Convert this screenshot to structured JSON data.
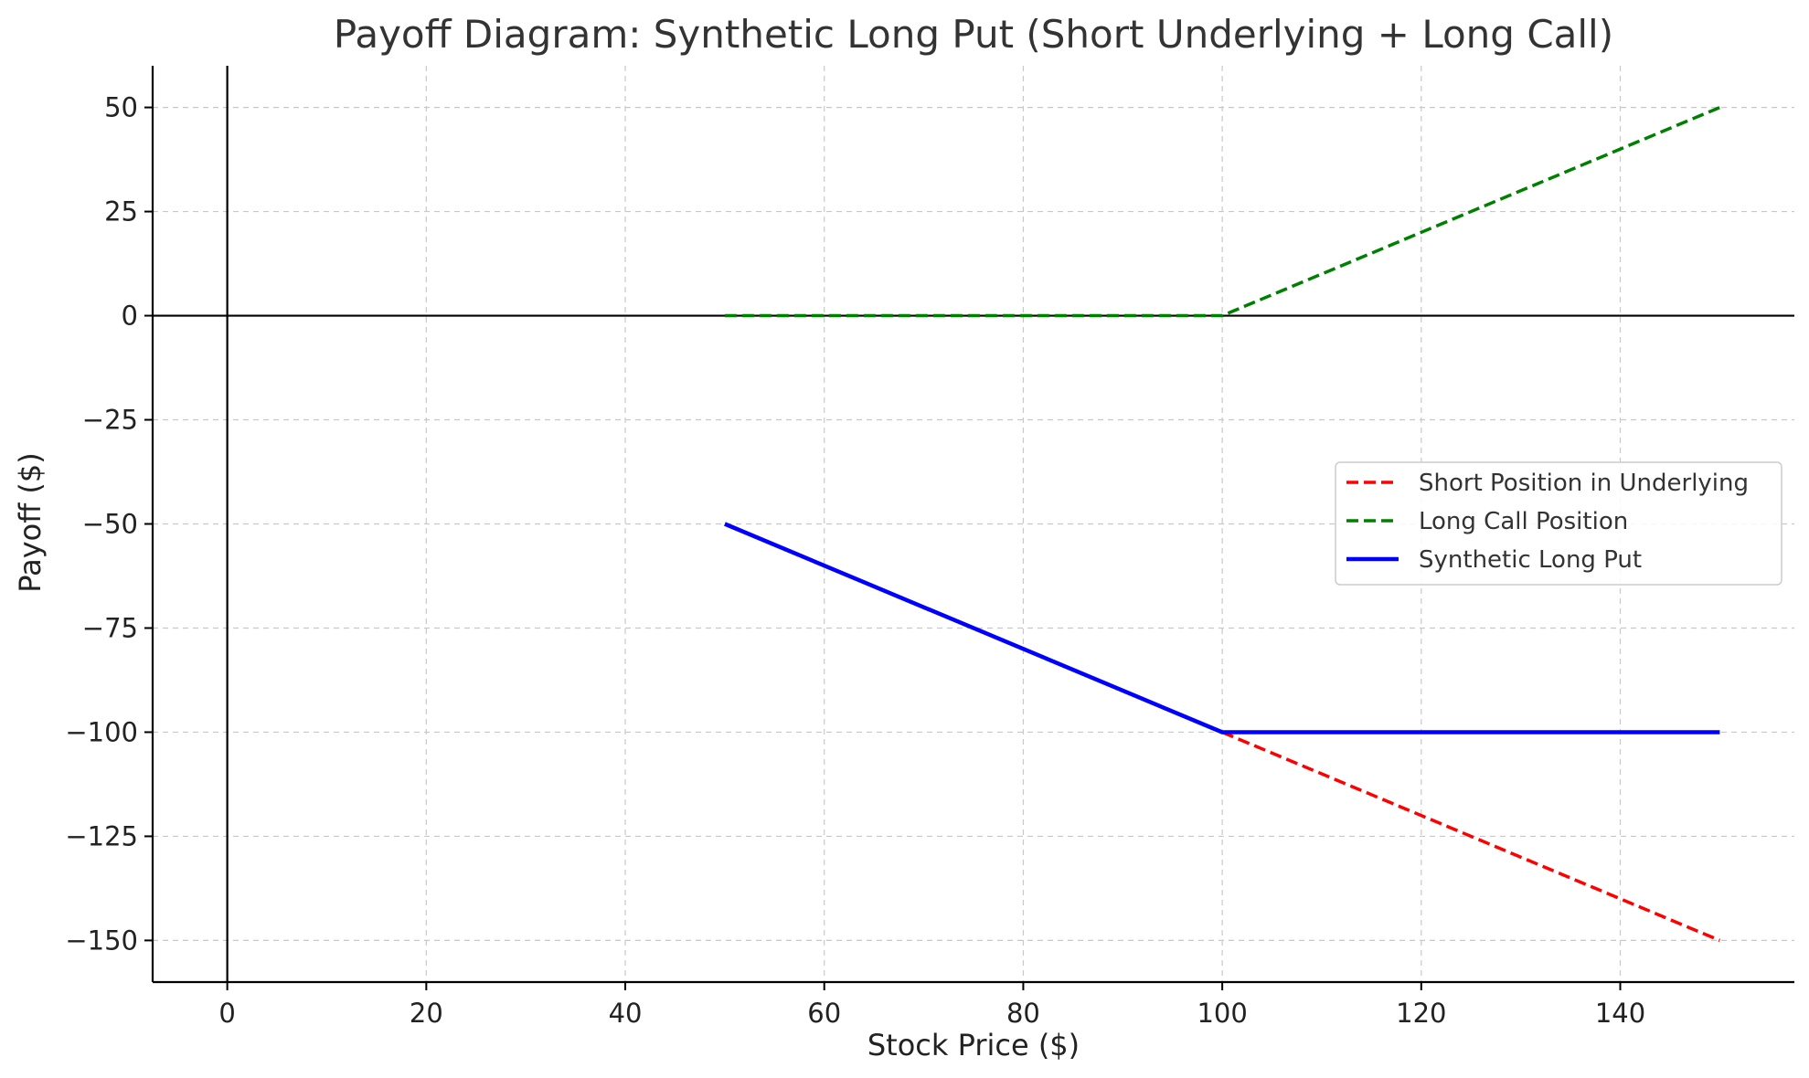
{
  "chart_data": {
    "type": "line",
    "title": "Payoff Diagram: Synthetic Long Put (Short Underlying + Long Call)",
    "xlabel": "Stock Price ($)",
    "ylabel": "Payoff ($)",
    "xlim": [
      -7.5,
      157.5
    ],
    "ylim": [
      -160,
      60
    ],
    "x_ticks": [
      0,
      20,
      40,
      60,
      80,
      100,
      120,
      140
    ],
    "y_ticks": [
      50,
      25,
      0,
      -25,
      -50,
      -75,
      -100,
      -125,
      -150
    ],
    "x_tick_labels": [
      "0",
      "20",
      "40",
      "60",
      "80",
      "100",
      "120",
      "140"
    ],
    "y_tick_labels": [
      "50",
      "25",
      "0",
      "−25",
      "−50",
      "−75",
      "−100",
      "−125",
      "−150"
    ],
    "grid": true,
    "reference_lines": {
      "x": 0,
      "y": 0
    },
    "legend_position": "center-right",
    "series": [
      {
        "name": "Short Position in Underlying",
        "color": "#ff0000",
        "style": "dashed",
        "x": [
          100,
          150
        ],
        "y": [
          -100,
          -150
        ]
      },
      {
        "name": "Long Call Position",
        "color": "#008000",
        "style": "dashed",
        "x": [
          50,
          100,
          150
        ],
        "y": [
          0,
          0,
          50
        ]
      },
      {
        "name": "Synthetic Long Put",
        "color": "#0000ff",
        "style": "solid",
        "x": [
          50,
          100,
          150
        ],
        "y": [
          -50,
          -100,
          -100
        ]
      }
    ]
  }
}
